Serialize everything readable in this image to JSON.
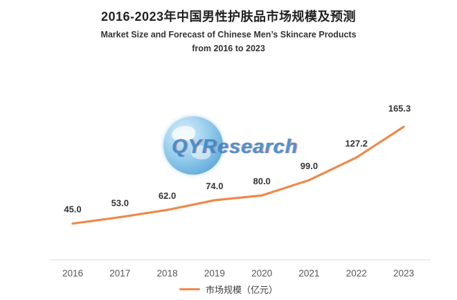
{
  "chart_data": {
    "type": "line",
    "title": "2016-2023年中国男性护肤品市场规模及预测",
    "subtitle_line1": "Market Size and Forecast of Chinese Men’s Skincare Products",
    "subtitle_line2": "from 2016 to 2023",
    "categories": [
      "2016",
      "2017",
      "2018",
      "2019",
      "2020",
      "2021",
      "2022",
      "2023"
    ],
    "values": [
      45.0,
      53.0,
      62.0,
      74.0,
      80.0,
      99.0,
      127.2,
      165.3
    ],
    "series_name": "市场规模",
    "legend_label": "市场规模（亿元）",
    "legend_position": "bottom",
    "line_color": "#f0884a",
    "label_color": "#333333",
    "axis_line_color": "#dcdcdc",
    "grid": false,
    "ylim": [
      0,
      180
    ]
  },
  "watermark": {
    "text": "QYResearch",
    "icon": "globe-icon"
  }
}
